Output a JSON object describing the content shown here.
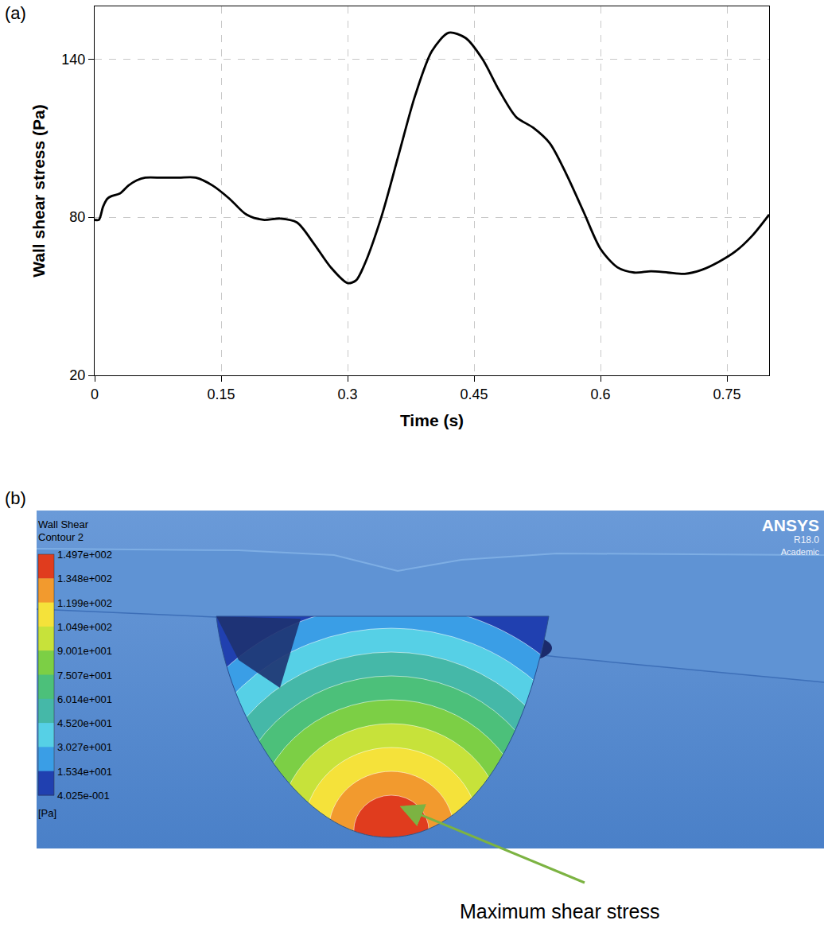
{
  "chart_data": {
    "type": "line",
    "panel_label": "(a)",
    "x_label": "Time (s)",
    "y_label": "Wall shear stress (Pa)",
    "x": [
      0,
      0.005,
      0.01,
      0.015,
      0.02,
      0.03,
      0.04,
      0.05,
      0.06,
      0.08,
      0.1,
      0.12,
      0.14,
      0.16,
      0.18,
      0.2,
      0.22,
      0.24,
      0.26,
      0.28,
      0.3,
      0.31,
      0.32,
      0.34,
      0.36,
      0.38,
      0.4,
      0.42,
      0.44,
      0.46,
      0.48,
      0.5,
      0.52,
      0.54,
      0.56,
      0.58,
      0.6,
      0.62,
      0.64,
      0.66,
      0.68,
      0.7,
      0.72,
      0.74,
      0.76,
      0.78,
      0.8
    ],
    "values": [
      79,
      79,
      84,
      87,
      88,
      89,
      92,
      94,
      95,
      95,
      95,
      95,
      92,
      87,
      81,
      79,
      79.5,
      78,
      70,
      61,
      55,
      56,
      62,
      80,
      103,
      126,
      143,
      150,
      148,
      140,
      128,
      118,
      114,
      108,
      96,
      82,
      68,
      61,
      59,
      59.5,
      59,
      58.5,
      60,
      63,
      67,
      73,
      81
    ],
    "color": "#000000",
    "xlim": [
      0,
      0.8
    ],
    "ylim": [
      20,
      160
    ],
    "xticks": [
      0,
      0.15,
      0.3,
      0.45,
      0.6,
      0.75
    ],
    "yticks": [
      20,
      80,
      140
    ],
    "grid": true
  },
  "contour_figure": {
    "panel_label": "(b)",
    "legend_title": [
      "Wall Shear",
      "Contour 2"
    ],
    "legend_levels": [
      "1.497e+002",
      "1.348e+002",
      "1.199e+002",
      "1.049e+002",
      "9.001e+001",
      "7.507e+001",
      "6.014e+001",
      "4.520e+001",
      "3.027e+001",
      "1.534e+001",
      "4.025e-001"
    ],
    "legend_unit": "[Pa]",
    "band_colors": [
      "#e03c1e",
      "#f29a2e",
      "#f5e23a",
      "#c7e23a",
      "#7ccf45",
      "#4cc07a",
      "#45b8a8",
      "#56d0e6",
      "#3a9ee6",
      "#2040b0"
    ],
    "watermark": [
      "ANSYS",
      "R18.0",
      "Academic"
    ],
    "callout": "Maximum shear stress"
  }
}
